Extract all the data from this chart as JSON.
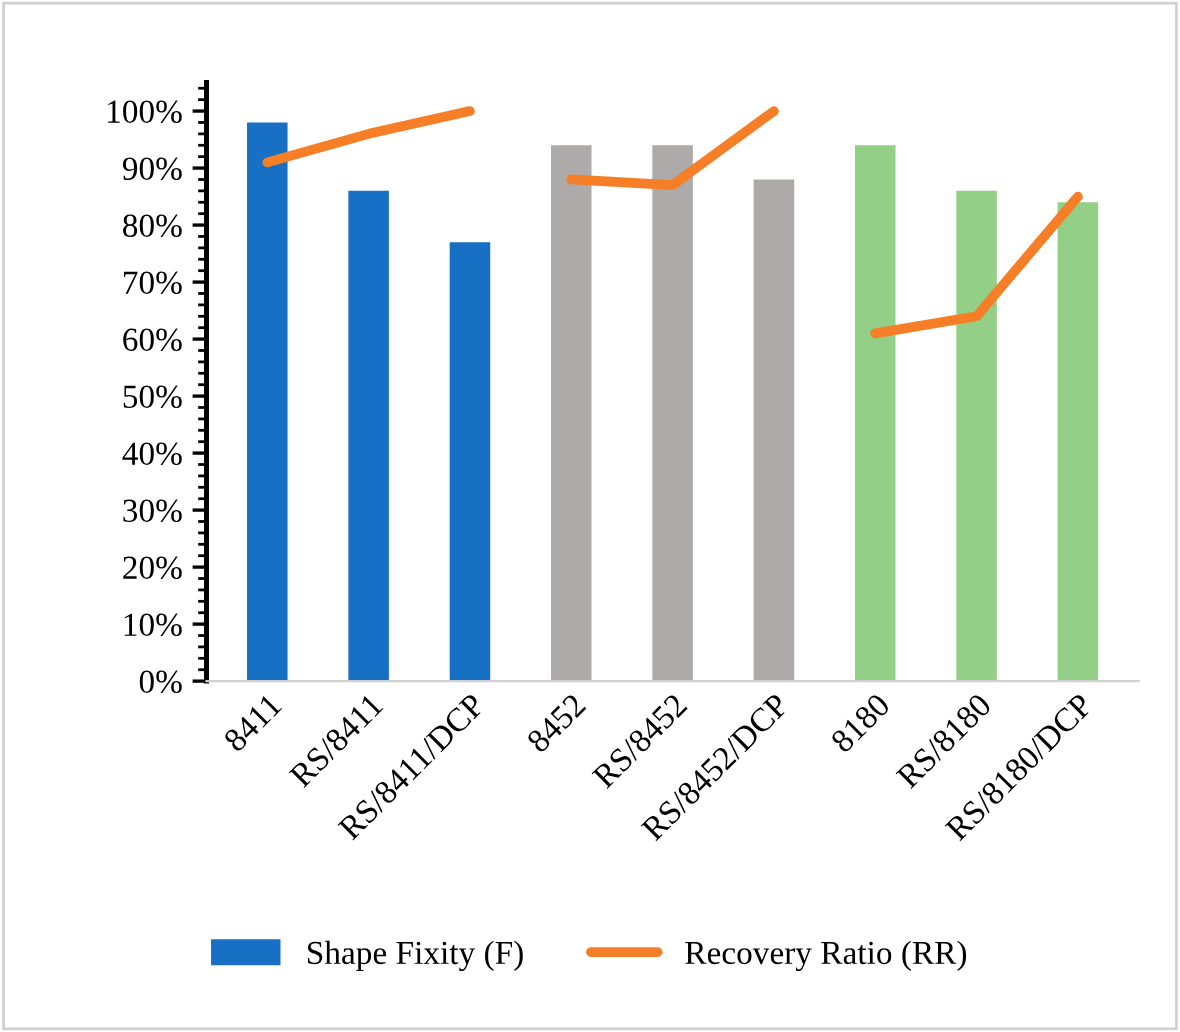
{
  "chart_data": {
    "type": "bar",
    "categories": [
      "8411",
      "RS/8411",
      "RS/8411/DCP",
      "8452",
      "RS/8452",
      "RS/8452/DCP",
      "8180",
      "RS/8180",
      "RS/8180/DCP"
    ],
    "series": [
      {
        "name": "Shape Fixity (F)",
        "color": "#1870c5",
        "colors": [
          "#1870c5",
          "#1870c5",
          "#1870c5",
          "#aeaaa9",
          "#aeaaa9",
          "#aeaaa9",
          "#93cf86",
          "#93cf86",
          "#93cf86"
        ],
        "values": [
          98,
          86,
          77,
          94,
          94,
          88,
          94,
          86,
          84
        ]
      },
      {
        "type": "line",
        "name": "Recovery Ratio (RR)",
        "color": "#f57e27",
        "values": [
          91,
          96,
          100,
          null,
          null,
          null,
          null,
          null,
          null
        ]
      },
      {
        "type": "line",
        "color": "#f57e27",
        "values": [
          null,
          null,
          null,
          88,
          87,
          100,
          null,
          null,
          null
        ]
      },
      {
        "type": "line",
        "color": "#f57e27",
        "values": [
          null,
          null,
          null,
          null,
          null,
          null,
          61,
          64,
          85
        ]
      }
    ],
    "ylim": [
      0,
      105
    ],
    "yticks": [
      {
        "value": 0,
        "label": "0%"
      },
      {
        "value": 10,
        "label": "10%"
      },
      {
        "value": 20,
        "label": "20%"
      },
      {
        "value": 30,
        "label": "30%"
      },
      {
        "value": 40,
        "label": "40%"
      },
      {
        "value": 50,
        "label": "50%"
      },
      {
        "value": 60,
        "label": "60%"
      },
      {
        "value": 70,
        "label": "70%"
      },
      {
        "value": 80,
        "label": "80%"
      },
      {
        "value": 90,
        "label": "90%"
      },
      {
        "value": 100,
        "label": "100%"
      }
    ],
    "grid": false,
    "legend": "bottom",
    "marker": "none",
    "line_style": "solid"
  }
}
